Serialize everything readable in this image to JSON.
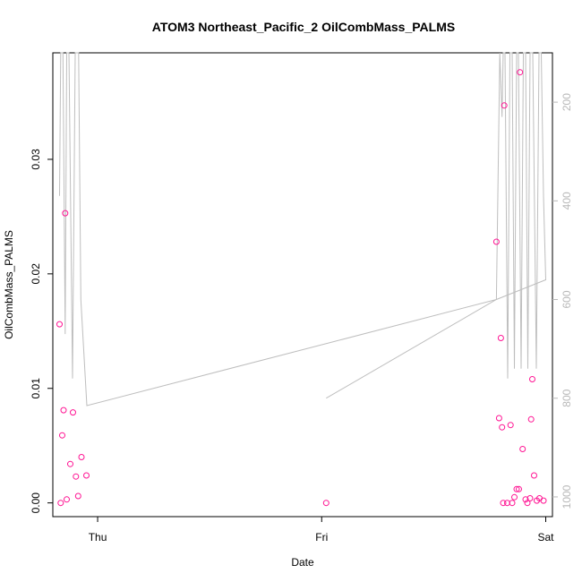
{
  "chart_data": {
    "type": "scatter",
    "title": "ATOM3 Northeast_Pacific_2 OilCombMass_PALMS",
    "xlabel": "Date",
    "ylabel": "OilCombMass_PALMS",
    "x_unit": "days",
    "xlim": [
      -0.2,
      2.03
    ],
    "ylim": [
      -0.0012,
      0.0393
    ],
    "x_ticks": [
      {
        "value": 0,
        "label": "Thu"
      },
      {
        "value": 1,
        "label": "Fri"
      },
      {
        "value": 2,
        "label": "Sat"
      }
    ],
    "y_ticks": [
      {
        "value": 0.0,
        "label": "0.00"
      },
      {
        "value": 0.01,
        "label": "0.01"
      },
      {
        "value": 0.02,
        "label": "0.02"
      },
      {
        "value": 0.03,
        "label": "0.03"
      }
    ],
    "right_axis": {
      "range": [
        1040,
        100
      ],
      "ticks": [
        {
          "value": 200,
          "label": "200"
        },
        {
          "value": 400,
          "label": "400"
        },
        {
          "value": 600,
          "label": "600"
        },
        {
          "value": 800,
          "label": "800"
        },
        {
          "value": 1000,
          "label": "1000"
        }
      ],
      "color": "#b8b8b8"
    },
    "grid": false,
    "series": [
      {
        "type": "scatter",
        "marker": "open-circle",
        "color": "#ff1493",
        "points": [
          {
            "x": -0.17,
            "y": 0.0156
          },
          {
            "x": -0.165,
            "y": 0.0
          },
          {
            "x": -0.158,
            "y": 0.0059
          },
          {
            "x": -0.152,
            "y": 0.0081
          },
          {
            "x": -0.145,
            "y": 0.0253
          },
          {
            "x": -0.138,
            "y": 0.0003
          },
          {
            "x": -0.122,
            "y": 0.0034
          },
          {
            "x": -0.11,
            "y": 0.0079
          },
          {
            "x": -0.097,
            "y": 0.0023
          },
          {
            "x": -0.087,
            "y": 0.0006
          },
          {
            "x": -0.072,
            "y": 0.004
          },
          {
            "x": -0.05,
            "y": 0.0024
          },
          {
            "x": 1.02,
            "y": 0.0
          },
          {
            "x": 1.78,
            "y": 0.0228
          },
          {
            "x": 1.792,
            "y": 0.0074
          },
          {
            "x": 1.8,
            "y": 0.0144
          },
          {
            "x": 1.805,
            "y": 0.0066
          },
          {
            "x": 1.81,
            "y": 0.0
          },
          {
            "x": 1.815,
            "y": 0.0347
          },
          {
            "x": 1.828,
            "y": 0.0
          },
          {
            "x": 1.843,
            "y": 0.0068
          },
          {
            "x": 1.85,
            "y": 0.0
          },
          {
            "x": 1.86,
            "y": 0.0005
          },
          {
            "x": 1.87,
            "y": 0.0012
          },
          {
            "x": 1.88,
            "y": 0.0012
          },
          {
            "x": 1.885,
            "y": 0.0376
          },
          {
            "x": 1.897,
            "y": 0.0047
          },
          {
            "x": 1.91,
            "y": 0.0003
          },
          {
            "x": 1.918,
            "y": 0.0
          },
          {
            "x": 1.93,
            "y": 0.0004
          },
          {
            "x": 1.935,
            "y": 0.0073
          },
          {
            "x": 1.94,
            "y": 0.0108
          },
          {
            "x": 1.948,
            "y": 0.0024
          },
          {
            "x": 1.96,
            "y": 0.0002
          },
          {
            "x": 1.972,
            "y": 0.0004
          },
          {
            "x": 1.99,
            "y": 0.0002
          }
        ]
      },
      {
        "type": "line",
        "axis": "right",
        "color": "#bebebe",
        "points": [
          {
            "x": -0.17,
            "y": 390
          },
          {
            "x": -0.165,
            "y": 100
          },
          {
            "x": -0.155,
            "y": 100
          },
          {
            "x": -0.145,
            "y": 670
          },
          {
            "x": -0.138,
            "y": 100
          },
          {
            "x": -0.128,
            "y": 100
          },
          {
            "x": -0.112,
            "y": 760
          },
          {
            "x": -0.1,
            "y": 100
          },
          {
            "x": -0.085,
            "y": 100
          },
          {
            "x": -0.075,
            "y": 600
          },
          {
            "x": -0.048,
            "y": 815
          },
          {
            "x": 1.78,
            "y": 600
          },
          {
            "x": 1.795,
            "y": 100
          },
          {
            "x": 1.805,
            "y": 230
          },
          {
            "x": 1.81,
            "y": 100
          },
          {
            "x": 1.818,
            "y": 100
          },
          {
            "x": 1.83,
            "y": 760
          },
          {
            "x": 1.84,
            "y": 100
          },
          {
            "x": 1.85,
            "y": 100
          },
          {
            "x": 1.86,
            "y": 740
          },
          {
            "x": 1.87,
            "y": 100
          },
          {
            "x": 1.878,
            "y": 100
          },
          {
            "x": 1.89,
            "y": 740
          },
          {
            "x": 1.9,
            "y": 100
          },
          {
            "x": 1.91,
            "y": 100
          },
          {
            "x": 1.92,
            "y": 740
          },
          {
            "x": 1.93,
            "y": 100
          },
          {
            "x": 1.942,
            "y": 100
          },
          {
            "x": 1.958,
            "y": 740
          },
          {
            "x": 1.97,
            "y": 100
          },
          {
            "x": 1.98,
            "y": 100
          },
          {
            "x": 1.99,
            "y": 390
          },
          {
            "x": 2.0,
            "y": 560
          },
          {
            "x": 1.78,
            "y": 600
          },
          {
            "x": 1.02,
            "y": 800
          }
        ]
      }
    ]
  }
}
